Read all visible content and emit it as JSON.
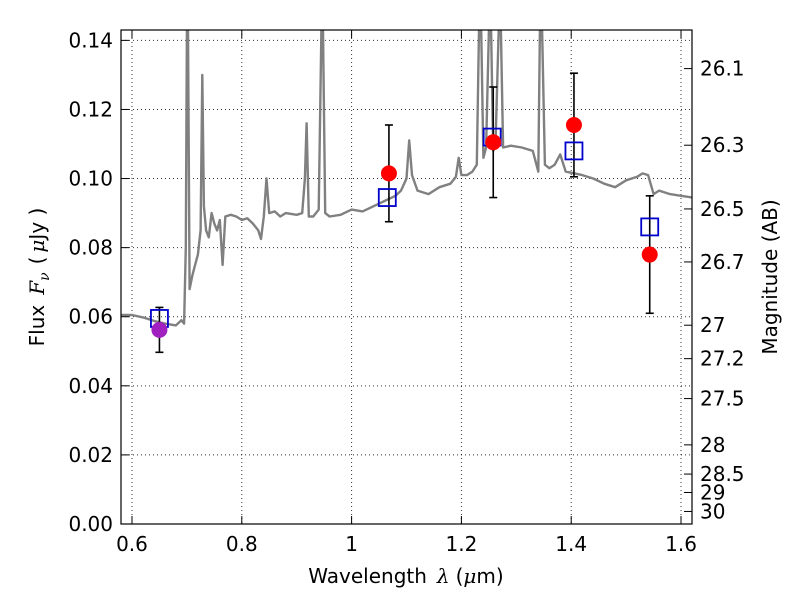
{
  "chart_data": {
    "type": "line",
    "title": "",
    "xlabel": "Wavelength",
    "xlabel_symbol": "λ",
    "xlabel_unit_open": "(",
    "xlabel_unit_mu": "μ",
    "xlabel_unit_rest": "m)",
    "ylabel": "Flux",
    "ylabel_symbol": "F",
    "ylabel_subscript": "ν",
    "ylabel_unit_open": "(",
    "ylabel_unit_mu": "μ",
    "ylabel_unit_rest": "Jy )",
    "y2label": "Magnitude (AB)",
    "xlim": [
      0.58,
      1.62
    ],
    "ylim": [
      0.0,
      0.143
    ],
    "grid": true,
    "xticks": [
      0.6,
      0.8,
      1.0,
      1.2,
      1.4,
      1.6
    ],
    "xtick_labels": [
      "0.6",
      "0.8",
      "1",
      "1.2",
      "1.4",
      "1.6"
    ],
    "yticks": [
      0.0,
      0.02,
      0.04,
      0.06,
      0.08,
      0.1,
      0.12,
      0.14
    ],
    "ytick_labels": [
      "0.00",
      "0.02",
      "0.04",
      "0.06",
      "0.08",
      "0.10",
      "0.12",
      "0.14"
    ],
    "y2ticks": [
      26.1,
      26.3,
      26.5,
      26.7,
      27,
      27.2,
      27.5,
      28,
      28.5,
      29,
      30
    ],
    "y2tick_labels": [
      "26.1",
      "26.3",
      "26.5",
      "26.7",
      "27",
      "27.2",
      "27.5",
      "28",
      "28.5",
      "29",
      "30"
    ],
    "colors": {
      "model_spectrum": "#808080",
      "observed": "#ff0000",
      "observed_first": "#a020c0",
      "synthetic": "#0000cc",
      "errorbar": "#000000"
    },
    "series": [
      {
        "kind": "spectrum",
        "points": [
          [
            0.58,
            0.0605
          ],
          [
            0.6,
            0.0605
          ],
          [
            0.62,
            0.0598
          ],
          [
            0.64,
            0.0588
          ],
          [
            0.66,
            0.058
          ],
          [
            0.68,
            0.0575
          ],
          [
            0.69,
            0.059
          ],
          [
            0.695,
            0.058
          ],
          [
            0.698,
            0.08
          ],
          [
            0.7,
            0.143
          ],
          [
            0.702,
            0.143
          ],
          [
            0.705,
            0.068
          ],
          [
            0.71,
            0.072
          ],
          [
            0.715,
            0.075
          ],
          [
            0.72,
            0.078
          ],
          [
            0.725,
            0.085
          ],
          [
            0.728,
            0.13
          ],
          [
            0.731,
            0.092
          ],
          [
            0.735,
            0.085
          ],
          [
            0.74,
            0.083
          ],
          [
            0.745,
            0.09
          ],
          [
            0.75,
            0.087
          ],
          [
            0.755,
            0.085
          ],
          [
            0.76,
            0.088
          ],
          [
            0.765,
            0.075
          ],
          [
            0.77,
            0.089
          ],
          [
            0.78,
            0.0895
          ],
          [
            0.79,
            0.089
          ],
          [
            0.8,
            0.088
          ],
          [
            0.81,
            0.0885
          ],
          [
            0.82,
            0.087
          ],
          [
            0.83,
            0.085
          ],
          [
            0.835,
            0.0825
          ],
          [
            0.84,
            0.089
          ],
          [
            0.845,
            0.1
          ],
          [
            0.85,
            0.09
          ],
          [
            0.86,
            0.0905
          ],
          [
            0.87,
            0.089
          ],
          [
            0.88,
            0.09
          ],
          [
            0.9,
            0.0895
          ],
          [
            0.91,
            0.09
          ],
          [
            0.915,
            0.1
          ],
          [
            0.918,
            0.116
          ],
          [
            0.922,
            0.089
          ],
          [
            0.93,
            0.089
          ],
          [
            0.94,
            0.091
          ],
          [
            0.945,
            0.143
          ],
          [
            0.948,
            0.143
          ],
          [
            0.952,
            0.09
          ],
          [
            0.96,
            0.089
          ],
          [
            0.98,
            0.0895
          ],
          [
            1.0,
            0.091
          ],
          [
            1.02,
            0.0905
          ],
          [
            1.04,
            0.092
          ],
          [
            1.06,
            0.0935
          ],
          [
            1.08,
            0.095
          ],
          [
            1.09,
            0.0965
          ],
          [
            1.1,
            0.1
          ],
          [
            1.105,
            0.111
          ],
          [
            1.11,
            0.101
          ],
          [
            1.12,
            0.0965
          ],
          [
            1.14,
            0.0955
          ],
          [
            1.16,
            0.0975
          ],
          [
            1.18,
            0.0985
          ],
          [
            1.19,
            0.1005
          ],
          [
            1.195,
            0.106
          ],
          [
            1.2,
            0.101
          ],
          [
            1.21,
            0.101
          ],
          [
            1.22,
            0.102
          ],
          [
            1.228,
            0.104
          ],
          [
            1.232,
            0.143
          ],
          [
            1.236,
            0.143
          ],
          [
            1.24,
            0.106
          ],
          [
            1.245,
            0.109
          ],
          [
            1.25,
            0.143
          ],
          [
            1.254,
            0.143
          ],
          [
            1.258,
            0.108
          ],
          [
            1.262,
            0.109
          ],
          [
            1.268,
            0.143
          ],
          [
            1.272,
            0.143
          ],
          [
            1.276,
            0.109
          ],
          [
            1.29,
            0.1095
          ],
          [
            1.31,
            0.109
          ],
          [
            1.33,
            0.108
          ],
          [
            1.34,
            0.102
          ],
          [
            1.343,
            0.143
          ],
          [
            1.347,
            0.143
          ],
          [
            1.352,
            0.104
          ],
          [
            1.36,
            0.103
          ],
          [
            1.37,
            0.104
          ],
          [
            1.38,
            0.107
          ],
          [
            1.39,
            0.102
          ],
          [
            1.42,
            0.101
          ],
          [
            1.44,
            0.1
          ],
          [
            1.46,
            0.0985
          ],
          [
            1.48,
            0.0975
          ],
          [
            1.5,
            0.0995
          ],
          [
            1.52,
            0.1005
          ],
          [
            1.53,
            0.1015
          ],
          [
            1.54,
            0.101
          ],
          [
            1.55,
            0.0955
          ],
          [
            1.56,
            0.0965
          ],
          [
            1.58,
            0.0955
          ],
          [
            1.6,
            0.095
          ],
          [
            1.62,
            0.0945
          ]
        ]
      },
      {
        "kind": "synthetic_points",
        "marker": "open-square",
        "x": [
          0.65,
          1.065,
          1.256,
          1.405,
          1.543
        ],
        "y": [
          0.0595,
          0.0945,
          0.112,
          0.108,
          0.086
        ]
      },
      {
        "kind": "observed_points",
        "marker": "filled-circle",
        "x": [
          0.65,
          1.068,
          1.258,
          1.405,
          1.543
        ],
        "y": [
          0.0562,
          0.1015,
          0.1105,
          0.1155,
          0.078
        ],
        "yerr": [
          0.0065,
          0.014,
          0.016,
          0.015,
          0.017
        ]
      }
    ]
  }
}
